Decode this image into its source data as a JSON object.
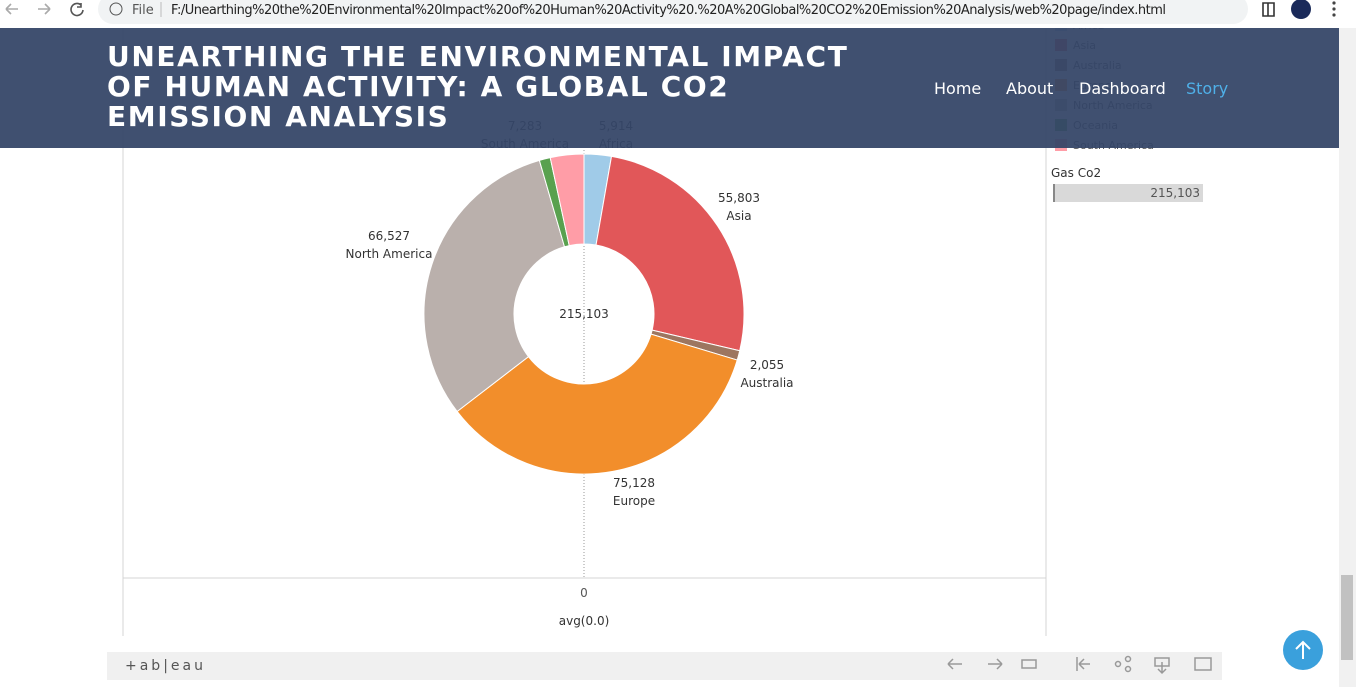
{
  "browser": {
    "file_label": "File",
    "url": "F:/Unearthing%20the%20Environmental%20Impact%20of%20Human%20Activity%20.%20A%20Global%20CO2%20Emission%20Analysis/web%20page/index.html"
  },
  "header": {
    "title": "UNEARTHING THE ENVIRONMENTAL IMPACT OF HUMAN ACTIVITY: A GLOBAL CO2 EMISSION ANALYSIS",
    "nav": [
      "Home",
      "About",
      "Dashboard",
      "Story"
    ],
    "active": 3
  },
  "chart_data": {
    "type": "pie",
    "categories": [
      "Africa",
      "Asia",
      "Australia",
      "Europe",
      "North America",
      "Oceania",
      "South America"
    ],
    "values": [
      5914,
      55803,
      2055,
      75128,
      66527,
      2393,
      7283
    ],
    "value_labels": [
      "5,914",
      "55,803",
      "2,055",
      "75,128",
      "66,527",
      null,
      "7,283"
    ],
    "colors": [
      "#a0cbe8",
      "#e15759",
      "#9d7660",
      "#f28e2b",
      "#bab0ac",
      "#59a14f",
      "#ff9da7"
    ],
    "total": {
      "value": 215103,
      "label": "215,103"
    },
    "xticks": [
      0
    ],
    "xlabel": "avg(0.0)"
  },
  "filter": {
    "title": "Gas Co2",
    "value": {
      "value": 215103,
      "label": "215,103"
    }
  },
  "toolbar": {
    "logo": "+ab|eau"
  }
}
